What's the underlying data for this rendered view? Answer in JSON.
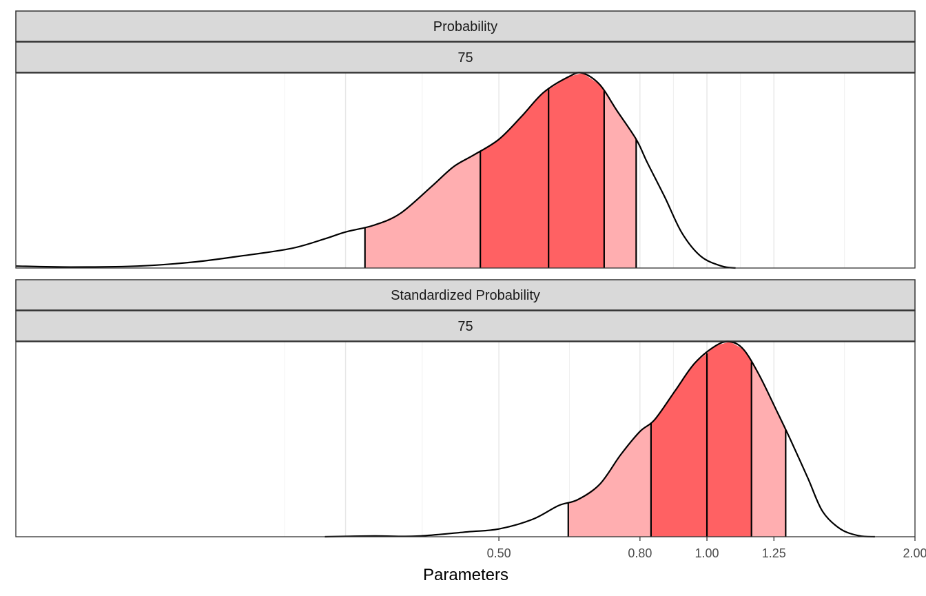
{
  "chart_data": {
    "type": "area",
    "xlabel": "Parameters",
    "x_scale": "log",
    "xlim": [
      0.1,
      2.0
    ],
    "x_ticks": [
      "0.50",
      "0.80",
      "1.00",
      "1.25",
      "2.00"
    ],
    "x_tick_values": [
      0.5,
      0.8,
      1.0,
      1.25,
      2.0
    ],
    "y_ticks_shown": false,
    "grid": true,
    "legend": "none",
    "colors": {
      "outer_interval": "#ffaeb0",
      "inner_interval": "#ff6163",
      "strip": "#d9d9d9",
      "outline": "#000000"
    },
    "panels": [
      {
        "strip_labels": [
          "Probability",
          "75"
        ],
        "density": [
          {
            "x": 0.1,
            "y": 0.01
          },
          {
            "x": 0.12,
            "y": 0.005
          },
          {
            "x": 0.15,
            "y": 0.01
          },
          {
            "x": 0.18,
            "y": 0.03
          },
          {
            "x": 0.21,
            "y": 0.06
          },
          {
            "x": 0.25,
            "y": 0.1
          },
          {
            "x": 0.28,
            "y": 0.15
          },
          {
            "x": 0.3,
            "y": 0.185
          },
          {
            "x": 0.33,
            "y": 0.22
          },
          {
            "x": 0.36,
            "y": 0.28
          },
          {
            "x": 0.4,
            "y": 0.42
          },
          {
            "x": 0.43,
            "y": 0.52
          },
          {
            "x": 0.46,
            "y": 0.58
          },
          {
            "x": 0.5,
            "y": 0.66
          },
          {
            "x": 0.54,
            "y": 0.78
          },
          {
            "x": 0.58,
            "y": 0.9
          },
          {
            "x": 0.63,
            "y": 0.98
          },
          {
            "x": 0.66,
            "y": 1.0
          },
          {
            "x": 0.7,
            "y": 0.94
          },
          {
            "x": 0.74,
            "y": 0.81
          },
          {
            "x": 0.79,
            "y": 0.66
          },
          {
            "x": 0.82,
            "y": 0.54
          },
          {
            "x": 0.87,
            "y": 0.36
          },
          {
            "x": 0.92,
            "y": 0.18
          },
          {
            "x": 0.98,
            "y": 0.06
          },
          {
            "x": 1.05,
            "y": 0.01
          },
          {
            "x": 1.1,
            "y": 0.0
          }
        ],
        "outer_interval": [
          0.32,
          0.79
        ],
        "inner_interval": [
          0.47,
          0.71
        ],
        "median": 0.59
      },
      {
        "strip_labels": [
          "Standardized Probability",
          "75"
        ],
        "density": [
          {
            "x": 0.28,
            "y": 0.0
          },
          {
            "x": 0.33,
            "y": 0.004
          },
          {
            "x": 0.38,
            "y": 0.003
          },
          {
            "x": 0.45,
            "y": 0.025
          },
          {
            "x": 0.5,
            "y": 0.04
          },
          {
            "x": 0.56,
            "y": 0.09
          },
          {
            "x": 0.61,
            "y": 0.16
          },
          {
            "x": 0.65,
            "y": 0.19
          },
          {
            "x": 0.7,
            "y": 0.27
          },
          {
            "x": 0.75,
            "y": 0.42
          },
          {
            "x": 0.8,
            "y": 0.54
          },
          {
            "x": 0.84,
            "y": 0.6
          },
          {
            "x": 0.9,
            "y": 0.75
          },
          {
            "x": 0.96,
            "y": 0.89
          },
          {
            "x": 1.03,
            "y": 0.98
          },
          {
            "x": 1.08,
            "y": 1.0
          },
          {
            "x": 1.13,
            "y": 0.96
          },
          {
            "x": 1.19,
            "y": 0.83
          },
          {
            "x": 1.26,
            "y": 0.65
          },
          {
            "x": 1.32,
            "y": 0.5
          },
          {
            "x": 1.4,
            "y": 0.3
          },
          {
            "x": 1.47,
            "y": 0.13
          },
          {
            "x": 1.56,
            "y": 0.04
          },
          {
            "x": 1.66,
            "y": 0.005
          },
          {
            "x": 1.75,
            "y": 0.0
          }
        ],
        "outer_interval": [
          0.63,
          1.3
        ],
        "inner_interval": [
          0.83,
          1.16
        ],
        "median": 1.0
      }
    ]
  }
}
